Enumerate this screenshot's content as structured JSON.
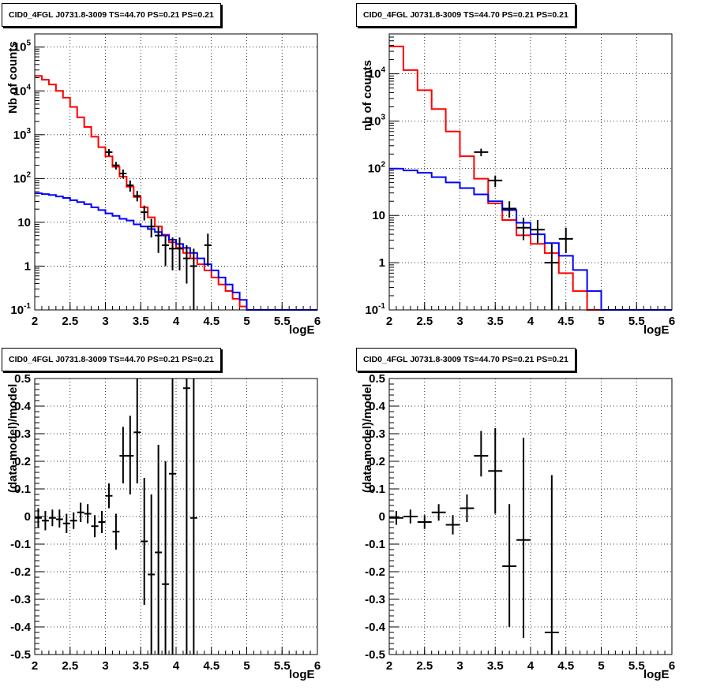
{
  "pads": [
    {
      "id": "spec_unbinned",
      "title": "CID0_4FGL J0731.8-3009 TS=44.70 PS=0.21 PS=0.21",
      "xlabel": "logE",
      "ylabel": "Nb of counts",
      "ylog": true
    },
    {
      "id": "spec_binned",
      "title": "CID0_4FGL J0731.8-3009 TS=44.70 PS=0.21 PS=0.21",
      "xlabel": "logE",
      "ylabel": "nb of counts",
      "ylog": true
    },
    {
      "id": "resid_unbinned",
      "title": "CID0_4FGL J0731.8-3009 TS=44.70 PS=0.21 PS=0.21",
      "xlabel": "logE",
      "ylabel": "(data-model)/model",
      "ylog": false
    },
    {
      "id": "resid_binned",
      "title": "CID0_4FGL J0731.8-3009 TS=44.70 PS=0.21 PS=0.21",
      "xlabel": "logE",
      "ylabel": "(data-model)/model",
      "ylog": false
    }
  ],
  "chart_data": [
    {
      "type": "line",
      "title": "CID0_4FGL J0731.8-3009 TS=44.70 PS=0.21 PS=0.21",
      "xlabel": "logE",
      "ylabel": "Nb of counts",
      "xlim": [
        2,
        6
      ],
      "ylim": [
        0.1,
        200000
      ],
      "yscale": "log",
      "xticks": [
        "2",
        "2.5",
        "3",
        "3.5",
        "4",
        "4.5",
        "5",
        "5.5",
        "6"
      ],
      "yticks": [
        "10^-1",
        "1",
        "10",
        "10^2",
        "10^3",
        "10^4",
        "10^5"
      ],
      "grid": true,
      "colors": {
        "total_model": "#ff0000",
        "background": "#0000ff",
        "data": "#000000"
      },
      "series": [
        {
          "kind": "step",
          "color": "#ff0000",
          "bin_edges": [
            2,
            2.1,
            2.2,
            2.3,
            2.4,
            2.5,
            2.6,
            2.7,
            2.8,
            2.9,
            3,
            3.1,
            3.2,
            3.3,
            3.4,
            3.5,
            3.6,
            3.7,
            3.8,
            3.9,
            4,
            4.1,
            4.2,
            4.3,
            4.4,
            4.5,
            4.6,
            4.7,
            4.8,
            4.9,
            5,
            5.1,
            5.2,
            5.3,
            5.4,
            5.5,
            5.6,
            5.7,
            5.8,
            5.9,
            6
          ],
          "values": [
            22000,
            18000,
            14000,
            10000,
            7000,
            4300,
            2500,
            1500,
            900,
            520,
            320,
            185,
            110,
            65,
            38,
            22,
            13,
            8,
            5.2,
            3.5,
            2.6,
            2,
            1.5,
            1.1,
            0.8,
            0.55,
            0.38,
            0.27,
            0.18,
            0.12,
            0.1,
            0.1,
            0.1,
            0.1,
            0.1,
            0.1,
            0.1,
            0.1,
            0.1,
            0.1
          ]
        },
        {
          "kind": "step",
          "color": "#0000ff",
          "bin_edges": [
            2,
            2.1,
            2.2,
            2.3,
            2.4,
            2.5,
            2.6,
            2.7,
            2.8,
            2.9,
            3,
            3.1,
            3.2,
            3.3,
            3.4,
            3.5,
            3.6,
            3.7,
            3.8,
            3.9,
            4,
            4.1,
            4.2,
            4.3,
            4.4,
            4.5,
            4.6,
            4.7,
            4.8,
            4.9,
            5,
            5.1,
            5.2,
            5.3,
            5.4,
            5.5,
            5.6,
            5.7,
            5.8,
            5.9,
            6
          ],
          "values": [
            46,
            44,
            42,
            39,
            36,
            32,
            29,
            26,
            22,
            19,
            16,
            14,
            12,
            11,
            9,
            8,
            7,
            6,
            5,
            4,
            3.2,
            2.6,
            2,
            1.5,
            1.1,
            0.8,
            0.55,
            0.38,
            0.25,
            0.17,
            0.1,
            0.1,
            0.1,
            0.1,
            0.1,
            0.1,
            0.1,
            0.1,
            0.1,
            0.1
          ]
        },
        {
          "kind": "points",
          "color": "#000000",
          "x": [
            3.05,
            3.15,
            3.25,
            3.35,
            3.45,
            3.55,
            3.65,
            3.75,
            3.85,
            3.95,
            4.05,
            4.15,
            4.25,
            4.45
          ],
          "y": [
            400,
            200,
            130,
            70,
            40,
            17,
            8,
            5,
            3,
            2.5,
            2.5,
            1.5,
            1,
            3
          ],
          "ylo": [
            330,
            160,
            100,
            50,
            30,
            11,
            4.5,
            2,
            1,
            0.8,
            0.8,
            0.4,
            0.1,
            1
          ],
          "yhi": [
            470,
            240,
            160,
            90,
            52,
            24,
            12,
            8,
            5,
            4.5,
            4.5,
            3,
            2.5,
            5.5
          ],
          "xerr": 0.05
        }
      ]
    },
    {
      "type": "line",
      "title": "CID0_4FGL J0731.8-3009 TS=44.70 PS=0.21 PS=0.21",
      "xlabel": "logE",
      "ylabel": "nb of counts",
      "xlim": [
        2,
        6
      ],
      "ylim": [
        0.1,
        70000
      ],
      "yscale": "log",
      "xticks": [
        "2",
        "2.5",
        "3",
        "3.5",
        "4",
        "4.5",
        "5",
        "5.5",
        "6"
      ],
      "yticks": [
        "10^-1",
        "1",
        "10",
        "10^2",
        "10^3",
        "10^4"
      ],
      "grid": true,
      "colors": {
        "total_model": "#ff0000",
        "background": "#0000ff",
        "data": "#000000"
      },
      "series": [
        {
          "kind": "step",
          "color": "#ff0000",
          "bin_edges": [
            2,
            2.2,
            2.4,
            2.6,
            2.8,
            3,
            3.2,
            3.4,
            3.6,
            3.8,
            4,
            4.2,
            4.4,
            4.6,
            4.8,
            5,
            5.2,
            5.4,
            5.6,
            5.8,
            6
          ],
          "values": [
            38000,
            12000,
            4500,
            1800,
            600,
            180,
            60,
            18,
            8,
            3.8,
            2.5,
            1.6,
            0.6,
            0.25,
            0.1,
            0.1,
            0.1,
            0.1,
            0.1,
            0.1
          ]
        },
        {
          "kind": "step",
          "color": "#0000ff",
          "bin_edges": [
            2,
            2.2,
            2.4,
            2.6,
            2.8,
            3,
            3.2,
            3.4,
            3.6,
            3.8,
            4,
            4.2,
            4.4,
            4.6,
            4.8,
            5,
            5.2,
            5.4,
            5.6,
            5.8,
            6
          ],
          "values": [
            98,
            90,
            80,
            65,
            50,
            38,
            28,
            20,
            13,
            7,
            4,
            2.6,
            1.4,
            0.7,
            0.25,
            0.1,
            0.1,
            0.1,
            0.1,
            0.1
          ]
        },
        {
          "kind": "points",
          "color": "#000000",
          "x": [
            3.3,
            3.5,
            3.7,
            3.9,
            4.1,
            4.3,
            4.5
          ],
          "y": [
            220,
            55,
            14,
            5.5,
            5,
            1,
            3.2
          ],
          "ylo": [
            180,
            40,
            9,
            3,
            2.6,
            0.1,
            1.6
          ],
          "yhi": [
            260,
            70,
            20,
            9,
            8,
            2.5,
            5.5
          ],
          "xerr": 0.1
        }
      ]
    },
    {
      "type": "scatter",
      "title": "CID0_4FGL J0731.8-3009 TS=44.70 PS=0.21 PS=0.21",
      "xlabel": "logE",
      "ylabel": "(data-model)/model",
      "xlim": [
        2,
        6
      ],
      "ylim": [
        -0.5,
        0.5
      ],
      "xticks": [
        "2",
        "2.5",
        "3",
        "3.5",
        "4",
        "4.5",
        "5",
        "5.5",
        "6"
      ],
      "yticks": [
        "-0.5",
        "-0.4",
        "-0.3",
        "-0.2",
        "-0.1",
        "0",
        "0.1",
        "0.2",
        "0.3",
        "0.4",
        "0.5"
      ],
      "grid": true,
      "points": {
        "x": [
          2.05,
          2.15,
          2.25,
          2.35,
          2.45,
          2.55,
          2.65,
          2.75,
          2.85,
          2.95,
          3.05,
          3.15,
          3.25,
          3.35,
          3.45,
          3.55,
          3.65,
          3.75,
          3.85,
          3.95,
          4.15,
          4.25
        ],
        "y": [
          -0.005,
          -0.015,
          -0.005,
          -0.01,
          -0.025,
          -0.015,
          0.015,
          0.01,
          -0.035,
          -0.02,
          0.075,
          -0.055,
          0.22,
          0.22,
          0.305,
          -0.09,
          -0.21,
          -0.13,
          -0.245,
          0.155,
          0.465,
          -0.005
        ],
        "ylo": [
          -0.04,
          -0.05,
          -0.035,
          -0.04,
          -0.06,
          -0.045,
          -0.02,
          -0.025,
          -0.075,
          -0.06,
          0.03,
          -0.12,
          0.12,
          0.08,
          0.12,
          -0.32,
          -0.5,
          -0.5,
          -0.5,
          -0.5,
          -0.5,
          -0.5
        ],
        "yhi": [
          0.03,
          0.02,
          0.025,
          0.025,
          0.01,
          0.015,
          0.05,
          0.045,
          0.005,
          0.02,
          0.12,
          0.01,
          0.325,
          0.365,
          0.5,
          0.14,
          0.08,
          0.26,
          0.2,
          0.5,
          0.5,
          0.5
        ],
        "xerr": 0.05
      }
    },
    {
      "type": "scatter",
      "title": "CID0_4FGL J0731.8-3009 TS=44.70 PS=0.21 PS=0.21",
      "xlabel": "logE",
      "ylabel": "(data-model)/model",
      "xlim": [
        2,
        6
      ],
      "ylim": [
        -0.5,
        0.5
      ],
      "xticks": [
        "2",
        "2.5",
        "3",
        "3.5",
        "4",
        "4.5",
        "5",
        "5.5",
        "6"
      ],
      "yticks": [
        "-0.5",
        "-0.4",
        "-0.3",
        "-0.2",
        "-0.1",
        "0",
        "0.1",
        "0.2",
        "0.3",
        "0.4",
        "0.5"
      ],
      "grid": true,
      "points": {
        "x": [
          2.1,
          2.3,
          2.5,
          2.7,
          2.9,
          3.1,
          3.3,
          3.5,
          3.7,
          3.9,
          4.3
        ],
        "y": [
          -0.005,
          0.0,
          -0.02,
          0.015,
          -0.03,
          0.03,
          0.22,
          0.165,
          -0.18,
          -0.085,
          -0.42
        ],
        "ylo": [
          -0.03,
          -0.025,
          -0.045,
          -0.015,
          -0.065,
          -0.02,
          0.145,
          0.01,
          -0.4,
          -0.44,
          -0.5
        ],
        "yhi": [
          0.02,
          0.025,
          0.005,
          0.045,
          0.005,
          0.08,
          0.31,
          0.32,
          0.045,
          0.285,
          0.15
        ],
        "xerr": 0.1
      }
    }
  ]
}
